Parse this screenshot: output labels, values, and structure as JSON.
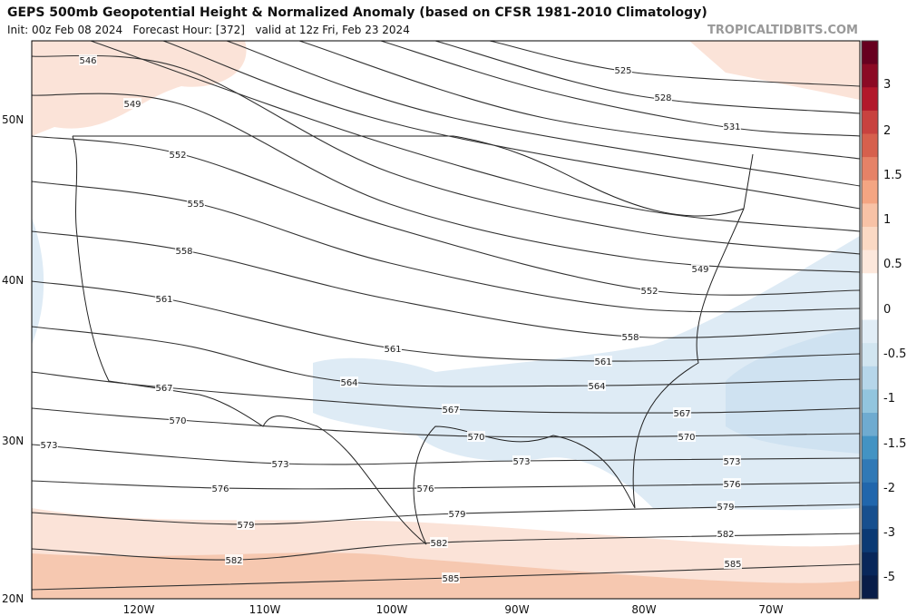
{
  "header": {
    "title": "GEPS 500mb Geopotential Height & Normalized Anomaly (based on CFSR 1981-2010 Climatology)",
    "subtitle": "Init: 00z Feb 08 2024   Forecast Hour: [372]   valid at 12z Fri, Feb 23 2024",
    "site": "TROPICALTIDBITS.COM"
  },
  "map": {
    "lat_labels": [
      "50N",
      "40N",
      "30N",
      "20N"
    ],
    "lon_labels": [
      "120W",
      "110W",
      "100W",
      "90W",
      "80W",
      "70W"
    ],
    "contour_labels": [
      "546",
      "549",
      "552",
      "555",
      "558",
      "561",
      "567",
      "570",
      "573",
      "573",
      "576",
      "579",
      "582",
      "525",
      "528",
      "531",
      "549",
      "552",
      "558",
      "561",
      "561",
      "564",
      "564",
      "567",
      "567",
      "570",
      "570",
      "573",
      "573",
      "576",
      "576",
      "579",
      "579",
      "582",
      "582",
      "585",
      "585"
    ]
  },
  "colorbar": {
    "labels": [
      "3",
      "2",
      "1.5",
      "1",
      "0.5",
      "0",
      "-0.5",
      "-1",
      "-1.5",
      "-2",
      "-3",
      "-5"
    ]
  }
}
